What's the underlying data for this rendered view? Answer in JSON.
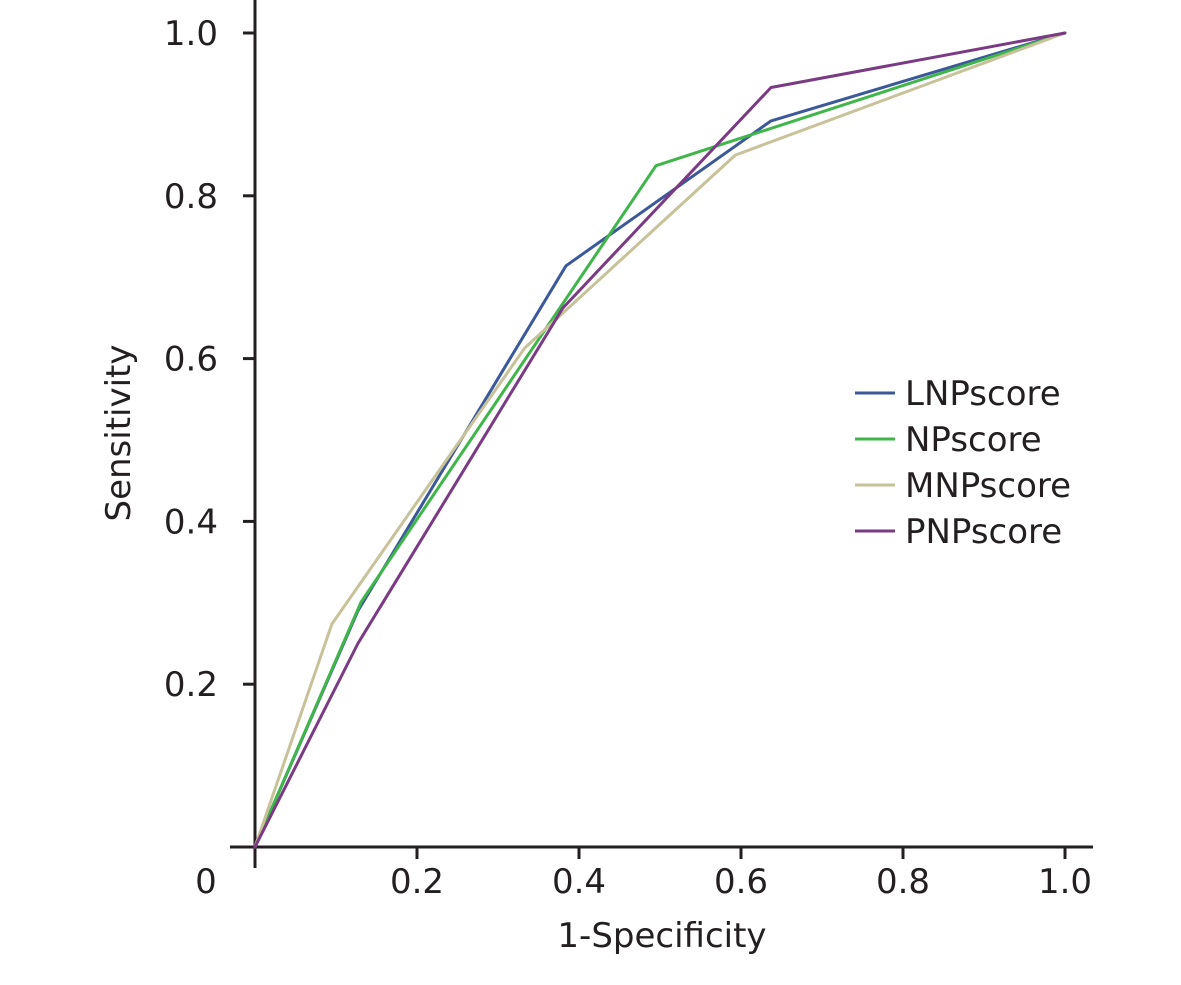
{
  "chart_data": {
    "type": "line",
    "title": "",
    "xlabel": "1-Specificity",
    "ylabel": "Sensitivity",
    "xlim": [
      0,
      1.0
    ],
    "ylim": [
      0,
      1.0
    ],
    "origin_label": "0",
    "x_ticks": [
      {
        "value": 0.2,
        "label": "0.2"
      },
      {
        "value": 0.4,
        "label": "0.4"
      },
      {
        "value": 0.6,
        "label": "0.6"
      },
      {
        "value": 0.8,
        "label": "0.8"
      },
      {
        "value": 1.0,
        "label": "1.0"
      }
    ],
    "y_ticks": [
      {
        "value": 0.2,
        "label": "0.2"
      },
      {
        "value": 0.4,
        "label": "0.4"
      },
      {
        "value": 0.6,
        "label": "0.6"
      },
      {
        "value": 0.8,
        "label": "0.8"
      },
      {
        "value": 1.0,
        "label": "1.0"
      }
    ],
    "grid": false,
    "legend_position": "center-right",
    "series": [
      {
        "name": "LNPscore",
        "color": "#3b5998",
        "points": [
          [
            0,
            0
          ],
          [
            0.127,
            0.29
          ],
          [
            0.384,
            0.714
          ],
          [
            0.637,
            0.892
          ],
          [
            1.0,
            1.0
          ]
        ]
      },
      {
        "name": "NPscore",
        "color": "#3fb54a",
        "points": [
          [
            0,
            0
          ],
          [
            0.131,
            0.301
          ],
          [
            0.495,
            0.837
          ],
          [
            1.0,
            1.0
          ]
        ]
      },
      {
        "name": "MNPscore",
        "color": "#c8c29a",
        "points": [
          [
            0,
            0
          ],
          [
            0.095,
            0.274
          ],
          [
            0.333,
            0.613
          ],
          [
            0.593,
            0.85
          ],
          [
            1.0,
            1.0
          ]
        ]
      },
      {
        "name": "PNPscore",
        "color": "#7b3a84",
        "points": [
          [
            0,
            0
          ],
          [
            0.127,
            0.25
          ],
          [
            0.38,
            0.662
          ],
          [
            0.637,
            0.933
          ],
          [
            1.0,
            1.0
          ]
        ]
      }
    ]
  }
}
